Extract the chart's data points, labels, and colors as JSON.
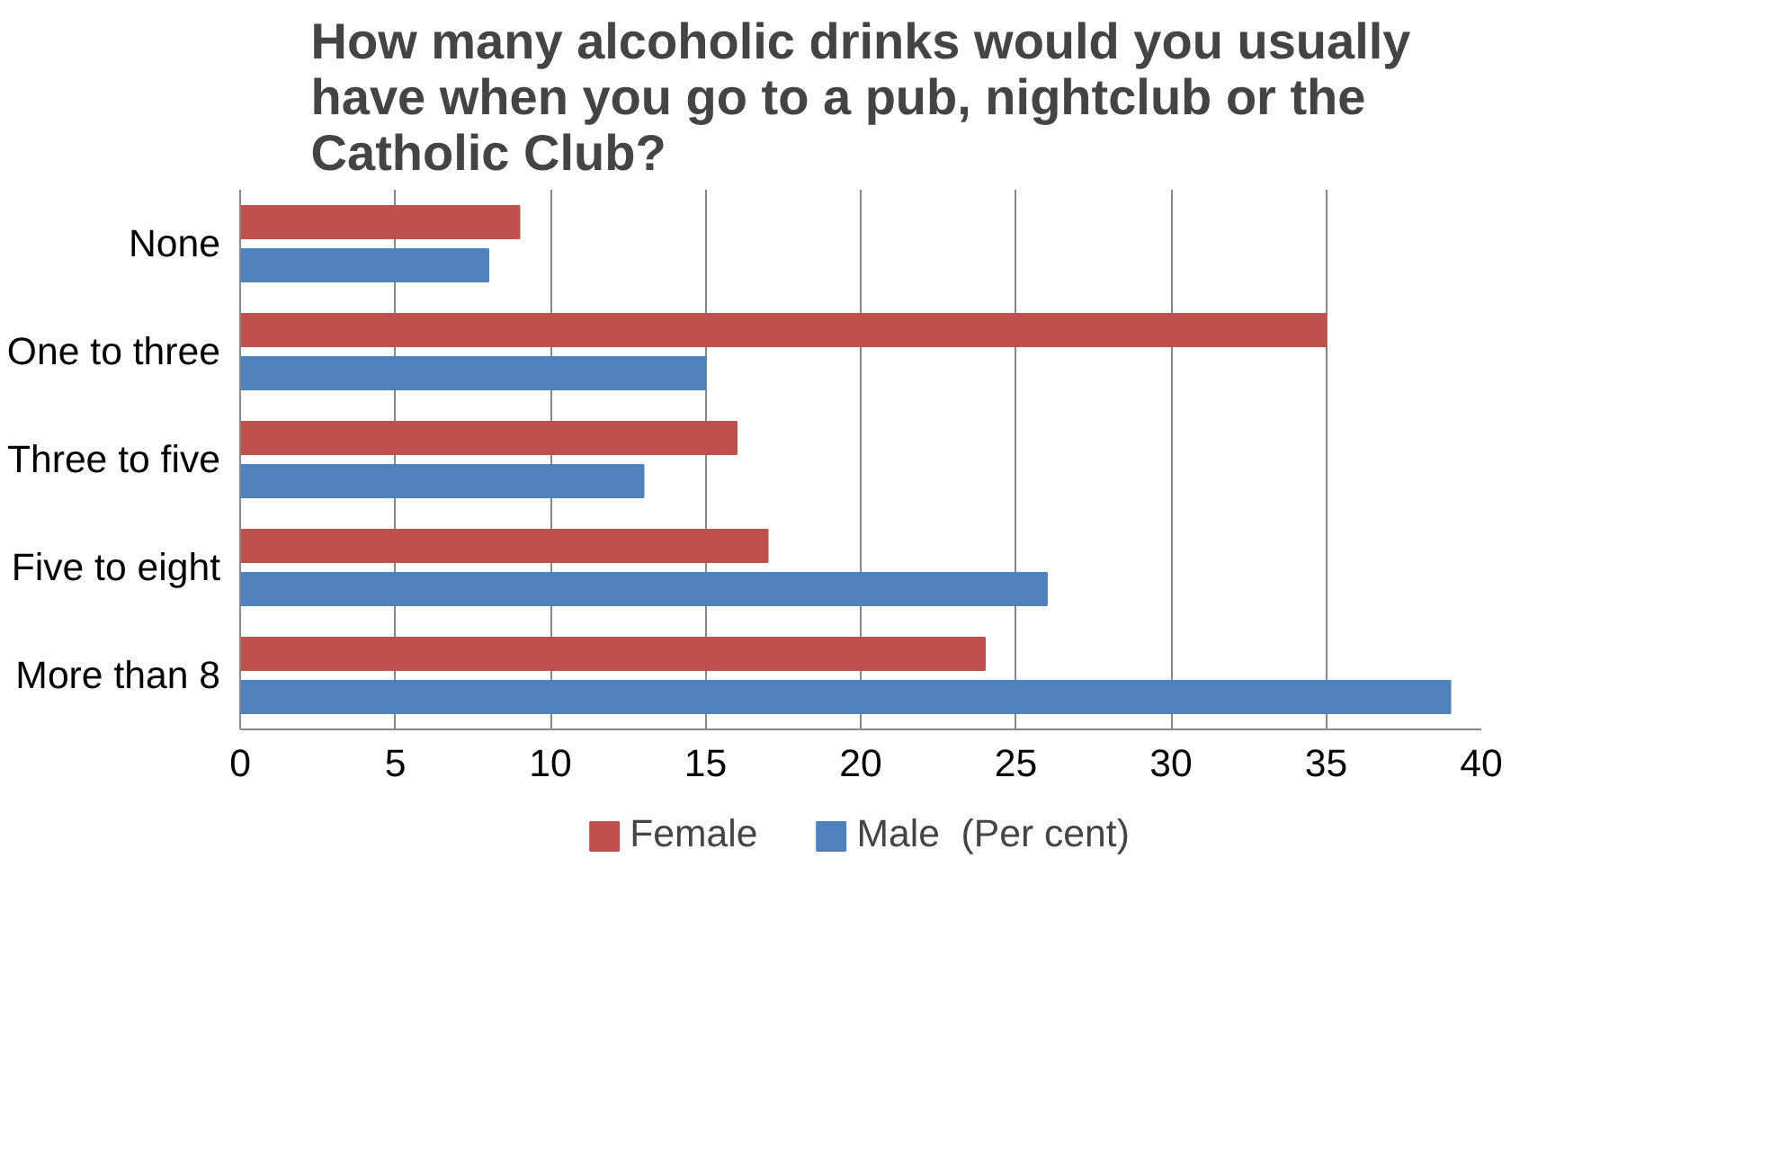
{
  "chart_data": {
    "type": "bar",
    "orientation": "horizontal",
    "title": "How many alcoholic drinks would you usually have when you go to a pub, nightclub or the Catholic Club?",
    "categories": [
      "None",
      "One to three",
      "Three to five",
      "Five to eight",
      "More than 8"
    ],
    "series": [
      {
        "name": "Female",
        "color": "#c0504d",
        "values": [
          9,
          35,
          16,
          17,
          24
        ]
      },
      {
        "name": "Male  (Per cent)",
        "color": "#4f81bd",
        "values": [
          8,
          15,
          13,
          26,
          39
        ]
      }
    ],
    "xlim": [
      0,
      40
    ],
    "xticks": [
      0,
      5,
      10,
      15,
      20,
      25,
      30,
      35,
      40
    ],
    "grid": "x",
    "legend": "bottom"
  }
}
